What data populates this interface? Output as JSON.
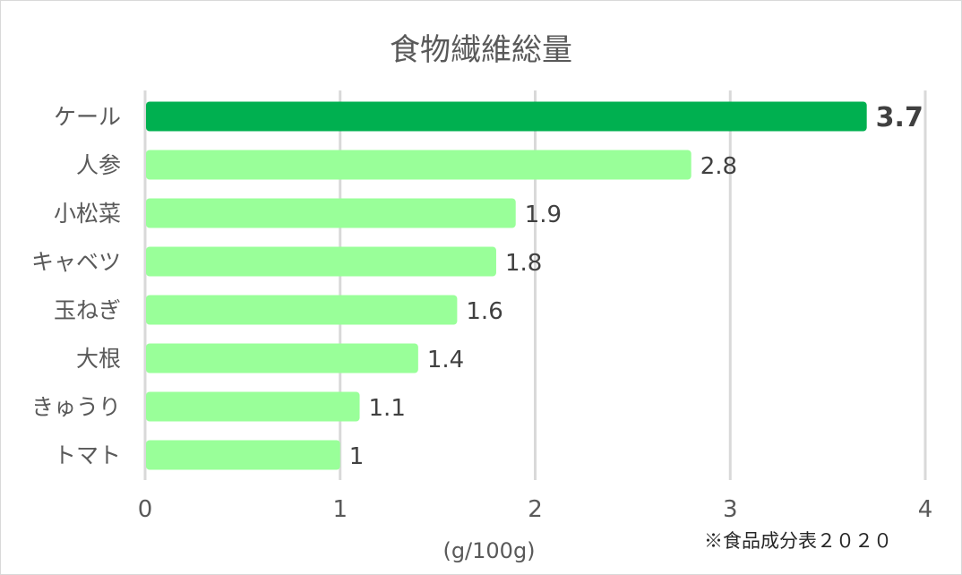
{
  "chart_data": {
    "type": "bar",
    "orientation": "horizontal",
    "title": "食物繊維総量",
    "xlabel": "(g/100g)",
    "ylabel": "",
    "categories": [
      "ケール",
      "人参",
      "小松菜",
      "キャベツ",
      "玉ねぎ",
      "大根",
      "きゅうり",
      "トマト"
    ],
    "values": [
      3.7,
      2.8,
      1.9,
      1.8,
      1.6,
      1.4,
      1.1,
      1
    ],
    "value_labels": [
      "3.7",
      "2.8",
      "1.9",
      "1.8",
      "1.6",
      "1.4",
      "1.1",
      "1"
    ],
    "xlim": [
      0,
      4
    ],
    "xticks": [
      0,
      1,
      2,
      3,
      4
    ],
    "xtick_labels": [
      "0",
      "1",
      "2",
      "3",
      "4"
    ],
    "grid": "vertical",
    "legend": "none",
    "highlight_index": 0,
    "colors": {
      "highlight": "#00b050",
      "default": "#99ff99",
      "grid": "#d9d9d9"
    },
    "source_note": "※食品成分表２０２０"
  }
}
